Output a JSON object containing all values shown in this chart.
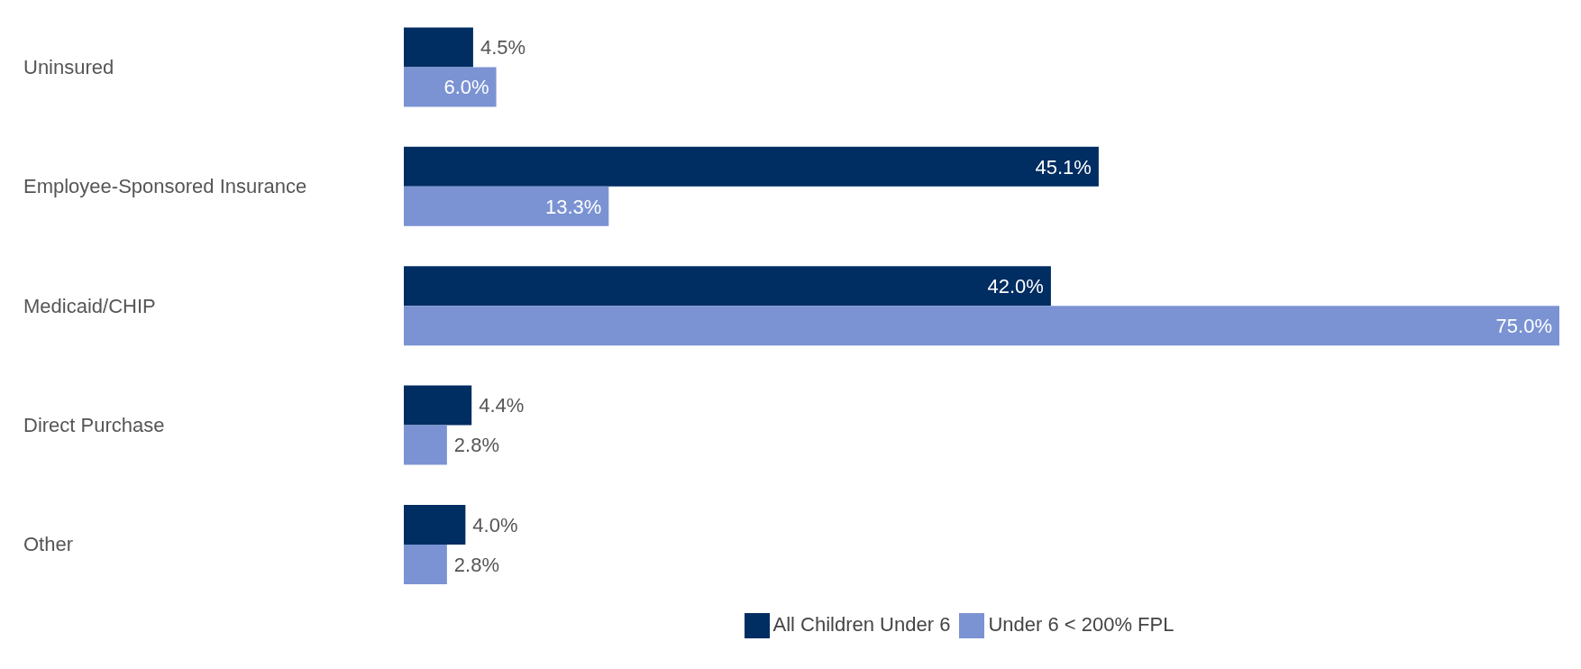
{
  "chart_data": {
    "type": "bar",
    "orientation": "horizontal",
    "categories": [
      "Uninsured",
      "Employee-Sponsored Insurance",
      "Medicaid/CHIP",
      "Direct Purchase",
      "Other"
    ],
    "series": [
      {
        "name": "All Children Under 6",
        "color": "#002d62",
        "values": [
          4.5,
          45.1,
          42.0,
          4.4,
          4.0
        ],
        "value_labels": [
          "4.5%",
          "45.1%",
          "42.0%",
          "4.4%",
          "4.0%"
        ]
      },
      {
        "name": "Under 6 < 200% FPL",
        "color": "#7b93d3",
        "values": [
          6.0,
          13.3,
          75.0,
          2.8,
          2.8
        ],
        "value_labels": [
          "6.0%",
          "13.3%",
          "75.0%",
          "2.8%",
          "2.8%"
        ]
      }
    ],
    "xlim": [
      0,
      75
    ],
    "tick_labels": "y",
    "legend": "bottom"
  }
}
